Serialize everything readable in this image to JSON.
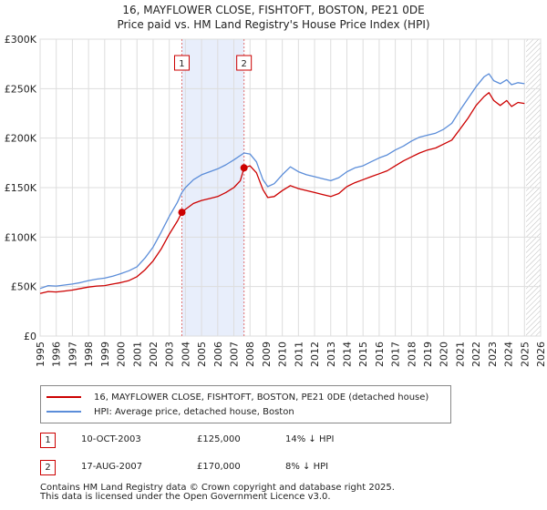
{
  "chart_data": {
    "type": "line",
    "title": "16, MAYFLOWER CLOSE, FISHTOFT, BOSTON, PE21 0DE",
    "subtitle": "Price paid vs. HM Land Registry's House Price Index (HPI)",
    "x_ticks": [
      "1995",
      "1996",
      "1997",
      "1998",
      "1999",
      "2000",
      "2001",
      "2002",
      "2003",
      "2004",
      "2005",
      "2006",
      "2007",
      "2008",
      "2009",
      "2010",
      "2011",
      "2012",
      "2013",
      "2014",
      "2015",
      "2016",
      "2017",
      "2018",
      "2019",
      "2020",
      "2021",
      "2022",
      "2023",
      "2024",
      "2025",
      "2026"
    ],
    "y_ticks": [
      "£0",
      "£50K",
      "£100K",
      "£150K",
      "£200K",
      "£250K",
      "£300K"
    ],
    "xlim": [
      1995,
      2026
    ],
    "ylim": [
      0,
      300000
    ],
    "highlight_span": {
      "from": 2003.78,
      "to": 2007.63
    },
    "future_hatch_from": 2025.1,
    "series": [
      {
        "name": "16, MAYFLOWER CLOSE, FISHTOFT, BOSTON, PE21 0DE (detached house)",
        "color": "#cc0000",
        "points": [
          [
            1995.0,
            43000
          ],
          [
            1995.5,
            45000
          ],
          [
            1996.0,
            44500
          ],
          [
            1996.5,
            45500
          ],
          [
            1997.0,
            46500
          ],
          [
            1997.5,
            48000
          ],
          [
            1998.0,
            49500
          ],
          [
            1998.5,
            50500
          ],
          [
            1999.0,
            51000
          ],
          [
            1999.5,
            52500
          ],
          [
            2000.0,
            54000
          ],
          [
            2000.5,
            56000
          ],
          [
            2001.0,
            60000
          ],
          [
            2001.5,
            67000
          ],
          [
            2002.0,
            76000
          ],
          [
            2002.5,
            88000
          ],
          [
            2003.0,
            103000
          ],
          [
            2003.5,
            116000
          ],
          [
            2003.78,
            125000
          ],
          [
            2004.0,
            128000
          ],
          [
            2004.5,
            134000
          ],
          [
            2005.0,
            137000
          ],
          [
            2005.5,
            139000
          ],
          [
            2006.0,
            141000
          ],
          [
            2006.5,
            145000
          ],
          [
            2007.0,
            150000
          ],
          [
            2007.4,
            157000
          ],
          [
            2007.63,
            170000
          ],
          [
            2008.0,
            172000
          ],
          [
            2008.4,
            165000
          ],
          [
            2008.8,
            148000
          ],
          [
            2009.1,
            140000
          ],
          [
            2009.5,
            141000
          ],
          [
            2010.0,
            147000
          ],
          [
            2010.5,
            152000
          ],
          [
            2011.0,
            149000
          ],
          [
            2011.5,
            147000
          ],
          [
            2012.0,
            145000
          ],
          [
            2012.5,
            143000
          ],
          [
            2013.0,
            141000
          ],
          [
            2013.5,
            144000
          ],
          [
            2014.0,
            151000
          ],
          [
            2014.5,
            155000
          ],
          [
            2015.0,
            158000
          ],
          [
            2015.5,
            161000
          ],
          [
            2016.0,
            164000
          ],
          [
            2016.5,
            167000
          ],
          [
            2017.0,
            172000
          ],
          [
            2017.5,
            177000
          ],
          [
            2018.0,
            181000
          ],
          [
            2018.5,
            185000
          ],
          [
            2019.0,
            188000
          ],
          [
            2019.5,
            190000
          ],
          [
            2020.0,
            194000
          ],
          [
            2020.5,
            198000
          ],
          [
            2021.0,
            209000
          ],
          [
            2021.5,
            220000
          ],
          [
            2022.0,
            233000
          ],
          [
            2022.5,
            242000
          ],
          [
            2022.8,
            246000
          ],
          [
            2023.1,
            238000
          ],
          [
            2023.5,
            233000
          ],
          [
            2023.9,
            238000
          ],
          [
            2024.2,
            232000
          ],
          [
            2024.6,
            236000
          ],
          [
            2025.0,
            235000
          ]
        ]
      },
      {
        "name": "HPI: Average price, detached house, Boston",
        "color": "#5b8dd9",
        "points": [
          [
            1995.0,
            48000
          ],
          [
            1995.5,
            51000
          ],
          [
            1996.0,
            50500
          ],
          [
            1996.5,
            51500
          ],
          [
            1997.0,
            52500
          ],
          [
            1997.5,
            54000
          ],
          [
            1998.0,
            56000
          ],
          [
            1998.5,
            57500
          ],
          [
            1999.0,
            58500
          ],
          [
            1999.5,
            60500
          ],
          [
            2000.0,
            63000
          ],
          [
            2000.5,
            66000
          ],
          [
            2001.0,
            70000
          ],
          [
            2001.5,
            79000
          ],
          [
            2002.0,
            90000
          ],
          [
            2002.5,
            105000
          ],
          [
            2003.0,
            121000
          ],
          [
            2003.5,
            135000
          ],
          [
            2003.78,
            145000
          ],
          [
            2004.0,
            150000
          ],
          [
            2004.5,
            158000
          ],
          [
            2005.0,
            163000
          ],
          [
            2005.5,
            166000
          ],
          [
            2006.0,
            169000
          ],
          [
            2006.5,
            173000
          ],
          [
            2007.0,
            178000
          ],
          [
            2007.63,
            185000
          ],
          [
            2008.0,
            184000
          ],
          [
            2008.4,
            176000
          ],
          [
            2008.8,
            158000
          ],
          [
            2009.1,
            151000
          ],
          [
            2009.5,
            154000
          ],
          [
            2010.0,
            163000
          ],
          [
            2010.5,
            171000
          ],
          [
            2011.0,
            166000
          ],
          [
            2011.5,
            163000
          ],
          [
            2012.0,
            161000
          ],
          [
            2012.5,
            159000
          ],
          [
            2013.0,
            157000
          ],
          [
            2013.5,
            160000
          ],
          [
            2014.0,
            166000
          ],
          [
            2014.5,
            170000
          ],
          [
            2015.0,
            172000
          ],
          [
            2015.5,
            176000
          ],
          [
            2016.0,
            180000
          ],
          [
            2016.5,
            183000
          ],
          [
            2017.0,
            188000
          ],
          [
            2017.5,
            192000
          ],
          [
            2018.0,
            197000
          ],
          [
            2018.5,
            201000
          ],
          [
            2019.0,
            203000
          ],
          [
            2019.5,
            205000
          ],
          [
            2020.0,
            209000
          ],
          [
            2020.5,
            215000
          ],
          [
            2021.0,
            228000
          ],
          [
            2021.5,
            240000
          ],
          [
            2022.0,
            252000
          ],
          [
            2022.5,
            262000
          ],
          [
            2022.8,
            265000
          ],
          [
            2023.1,
            258000
          ],
          [
            2023.5,
            255000
          ],
          [
            2023.9,
            259000
          ],
          [
            2024.2,
            254000
          ],
          [
            2024.6,
            256000
          ],
          [
            2025.0,
            255000
          ]
        ]
      }
    ],
    "markers": [
      {
        "label": "1",
        "x": 2003.78,
        "y": 125000
      },
      {
        "label": "2",
        "x": 2007.63,
        "y": 170000
      }
    ]
  },
  "legend": {
    "entries": [
      {
        "label": "16, MAYFLOWER CLOSE, FISHTOFT, BOSTON, PE21 0DE (detached house)",
        "color": "#cc0000"
      },
      {
        "label": "HPI: Average price, detached house, Boston",
        "color": "#5b8dd9"
      }
    ]
  },
  "sales": [
    {
      "num": "1",
      "date": "10-OCT-2003",
      "price": "£125,000",
      "diff": "14% ↓ HPI"
    },
    {
      "num": "2",
      "date": "17-AUG-2007",
      "price": "£170,000",
      "diff": "8% ↓ HPI"
    }
  ],
  "footer": {
    "line1": "Contains HM Land Registry data © Crown copyright and database right 2025.",
    "line2": "This data is licensed under the Open Government Licence v3.0."
  }
}
